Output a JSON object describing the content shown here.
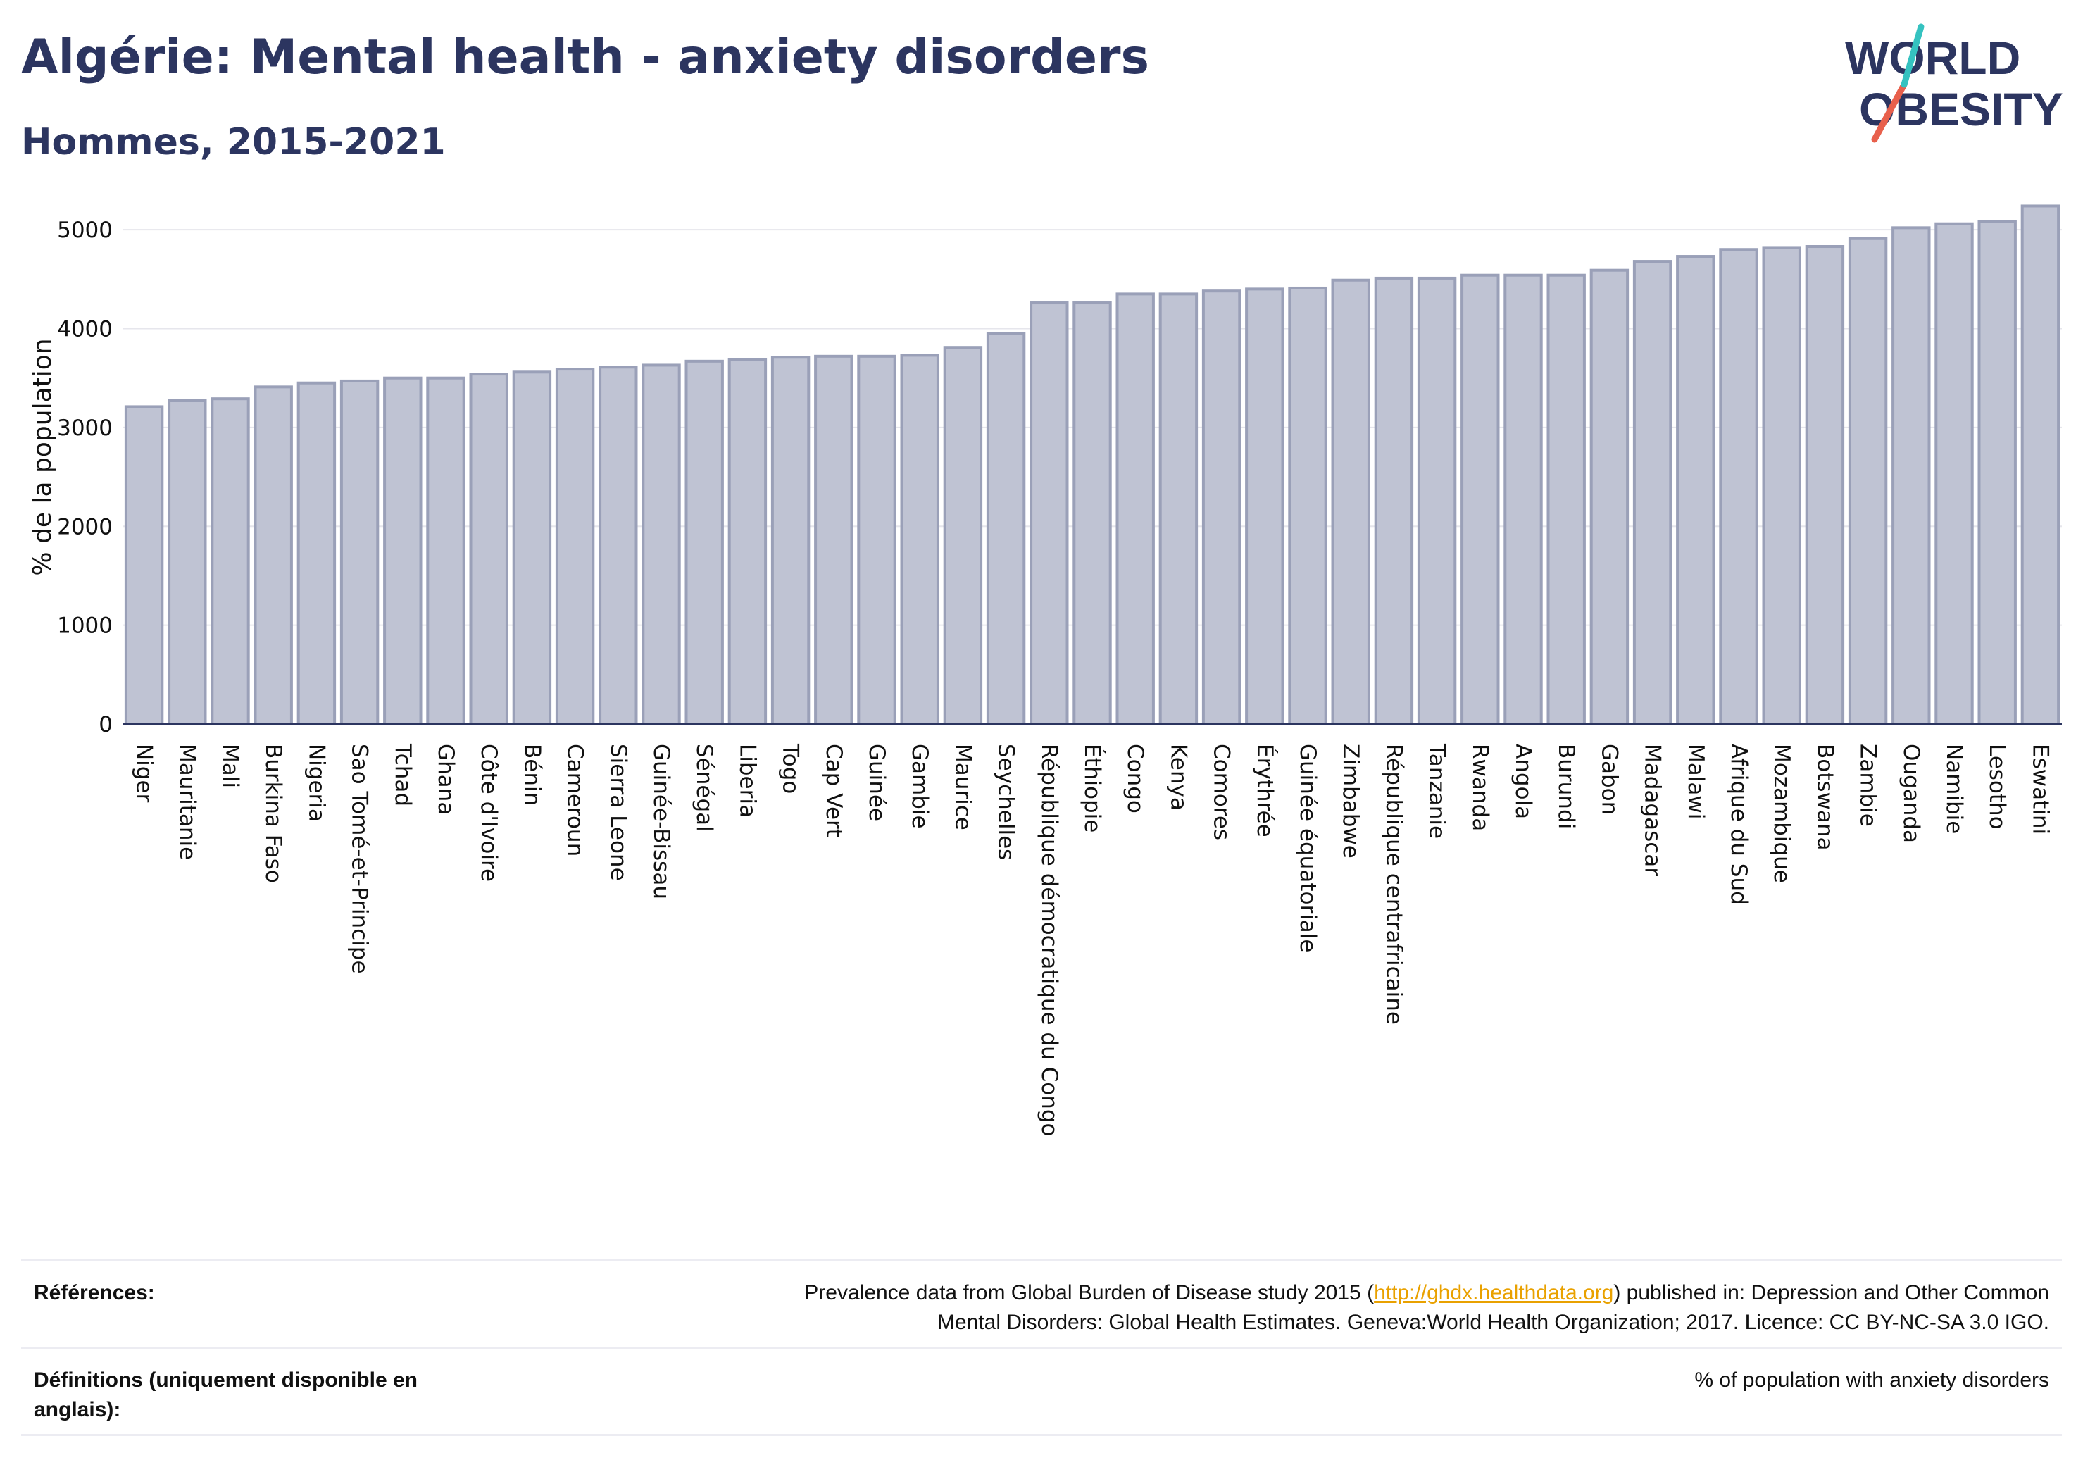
{
  "header": {
    "title": "Algérie: Mental health - anxiety disorders",
    "subtitle": "Hommes, 2015-2021"
  },
  "logo": {
    "line1": "WORLD",
    "line2": "OBESITY",
    "accent_colors": [
      "#35c2c0",
      "#e8604c"
    ]
  },
  "colors": {
    "bar_fill": "#bfc3d3",
    "bar_stroke": "#9aa0b8",
    "title": "#2c3560",
    "grid": "#e6e6ec",
    "axis": "#2c3560"
  },
  "chart_data": {
    "type": "bar",
    "ylabel": "% de la population",
    "ylim": [
      0,
      5400
    ],
    "yticks": [
      0,
      1000,
      2000,
      3000,
      4000,
      5000
    ],
    "grid": true,
    "categories": [
      "Niger",
      "Mauritanie",
      "Mali",
      "Burkina Faso",
      "Nigeria",
      "Sao Tomé-et-Principe",
      "Tchad",
      "Ghana",
      "Côte d'Ivoire",
      "Bénin",
      "Cameroun",
      "Sierra Leone",
      "Guinée-Bissau",
      "Sénégal",
      "Liberia",
      "Togo",
      "Cap Vert",
      "Guinée",
      "Gambie",
      "Maurice",
      "Seychelles",
      "République démocratique du Congo",
      "Éthiopie",
      "Congo",
      "Kenya",
      "Comores",
      "Érythrée",
      "Guinée équatoriale",
      "Zimbabwe",
      "République centrafricaine",
      "Tanzanie",
      "Rwanda",
      "Angola",
      "Burundi",
      "Gabon",
      "Madagascar",
      "Malawi",
      "Afrique du Sud",
      "Mozambique",
      "Botswana",
      "Zambie",
      "Ouganda",
      "Namibie",
      "Lesotho",
      "Eswatini"
    ],
    "values": [
      3210,
      3270,
      3290,
      3410,
      3450,
      3470,
      3500,
      3500,
      3540,
      3560,
      3590,
      3610,
      3630,
      3670,
      3690,
      3710,
      3720,
      3720,
      3730,
      3810,
      3950,
      4260,
      4260,
      4350,
      4350,
      4380,
      4400,
      4410,
      4490,
      4510,
      4510,
      4540,
      4540,
      4540,
      4590,
      4680,
      4730,
      4800,
      4820,
      4830,
      4910,
      5020,
      5060,
      5080,
      5240
    ]
  },
  "references": {
    "label": "Références:",
    "text_before": "Prevalence data from Global Burden of Disease study 2015 (",
    "link": "http://ghdx.healthdata.org",
    "text_after": ") published in: Depression and Other Common",
    "line2": "Mental Disorders: Global Health Estimates. Geneva:World Health Organization; 2017. Licence: CC BY-NC-SA 3.0 IGO."
  },
  "definitions": {
    "label_line1": "Définitions (uniquement disponible en",
    "label_line2": "anglais):",
    "text": "% of population with anxiety disorders"
  }
}
